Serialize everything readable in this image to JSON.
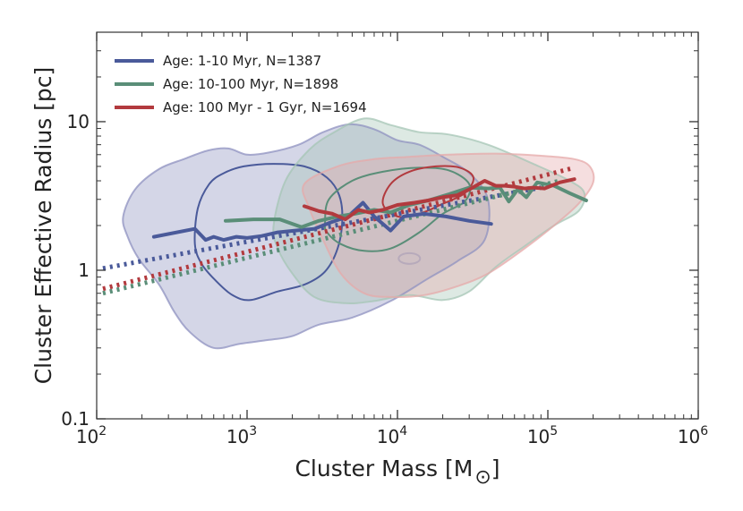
{
  "chart_data": {
    "type": "line",
    "xscale": "log",
    "yscale": "log",
    "xlabel": "Cluster Mass [M",
    "xlabel_symbol": "⊙",
    "xlabel_close": "]",
    "ylabel": "Cluster Effective Radius [pc]",
    "xlim": [
      100,
      1000000
    ],
    "ylim": [
      0.1,
      40
    ],
    "x_ticks": [
      {
        "value": 100,
        "base": "10",
        "exp": "2"
      },
      {
        "value": 1000,
        "base": "10",
        "exp": "3"
      },
      {
        "value": 10000,
        "base": "10",
        "exp": "4"
      },
      {
        "value": 100000,
        "base": "10",
        "exp": "5"
      },
      {
        "value": 1000000,
        "base": "10",
        "exp": "6"
      }
    ],
    "y_ticks": [
      {
        "value": 0.1,
        "label": "0.1"
      },
      {
        "value": 1,
        "label": "1"
      },
      {
        "value": 10,
        "label": "10"
      }
    ],
    "series": [
      {
        "name": "Age: 1-10 Myr, N=1387",
        "color": "#4a5a9a",
        "fill": "#8f92c0",
        "median": [
          [
            240,
            1.68
          ],
          [
            450,
            1.9
          ],
          [
            530,
            1.6
          ],
          [
            600,
            1.68
          ],
          [
            700,
            1.6
          ],
          [
            850,
            1.68
          ],
          [
            1000,
            1.65
          ],
          [
            1250,
            1.7
          ],
          [
            1600,
            1.8
          ],
          [
            2100,
            1.85
          ],
          [
            2800,
            1.9
          ],
          [
            3600,
            2.1
          ],
          [
            4700,
            2.3
          ],
          [
            5900,
            2.85
          ],
          [
            7000,
            2.3
          ],
          [
            9000,
            1.85
          ],
          [
            11000,
            2.3
          ],
          [
            15000,
            2.4
          ],
          [
            21000,
            2.3
          ],
          [
            30000,
            2.15
          ],
          [
            42000,
            2.05
          ]
        ],
        "fit": [
          [
            110,
            1.03
          ],
          [
            90000,
            3.6
          ]
        ],
        "outer_contour": [
          [
            150,
            2.3
          ],
          [
            180,
            3.5
          ],
          [
            260,
            4.8
          ],
          [
            380,
            5.6
          ],
          [
            550,
            6.4
          ],
          [
            750,
            6.6
          ],
          [
            1000,
            6.0
          ],
          [
            1400,
            6.2
          ],
          [
            2200,
            7.0
          ],
          [
            3200,
            8.5
          ],
          [
            4800,
            9.6
          ],
          [
            7000,
            8.9
          ],
          [
            10000,
            7.5
          ],
          [
            14000,
            7.0
          ],
          [
            20000,
            5.8
          ],
          [
            30000,
            4.5
          ],
          [
            40000,
            3.0
          ],
          [
            38000,
            1.6
          ],
          [
            25000,
            1.15
          ],
          [
            16000,
            0.88
          ],
          [
            9000,
            0.62
          ],
          [
            5000,
            0.48
          ],
          [
            3000,
            0.43
          ],
          [
            2000,
            0.36
          ],
          [
            1400,
            0.34
          ],
          [
            900,
            0.32
          ],
          [
            600,
            0.3
          ],
          [
            420,
            0.38
          ],
          [
            330,
            0.52
          ],
          [
            260,
            0.8
          ],
          [
            190,
            1.2
          ],
          [
            160,
            1.7
          ]
        ],
        "inner_contour": [
          [
            450,
            1.5
          ],
          [
            470,
            2.6
          ],
          [
            560,
            3.8
          ],
          [
            700,
            4.5
          ],
          [
            950,
            5.0
          ],
          [
            1500,
            5.2
          ],
          [
            2400,
            5.0
          ],
          [
            3400,
            4.2
          ],
          [
            4100,
            3.2
          ],
          [
            4300,
            2.2
          ],
          [
            4000,
            1.4
          ],
          [
            3300,
            0.98
          ],
          [
            2400,
            0.8
          ],
          [
            1600,
            0.72
          ],
          [
            1050,
            0.63
          ],
          [
            800,
            0.68
          ],
          [
            620,
            0.85
          ],
          [
            500,
            1.1
          ]
        ]
      },
      {
        "name": "Age: 10-100 Myr, N=1898",
        "color": "#5a8e78",
        "fill": "#a6c6b6",
        "median": [
          [
            720,
            2.15
          ],
          [
            1100,
            2.2
          ],
          [
            1650,
            2.2
          ],
          [
            2300,
            1.95
          ],
          [
            3000,
            2.15
          ],
          [
            4000,
            2.3
          ],
          [
            5200,
            2.4
          ],
          [
            7000,
            2.55
          ],
          [
            9000,
            2.45
          ],
          [
            12000,
            2.75
          ],
          [
            16000,
            2.95
          ],
          [
            22000,
            3.25
          ],
          [
            30000,
            3.6
          ],
          [
            40000,
            3.55
          ],
          [
            48000,
            3.6
          ],
          [
            55000,
            2.9
          ],
          [
            63000,
            3.5
          ],
          [
            72000,
            3.1
          ],
          [
            85000,
            3.9
          ],
          [
            110000,
            3.7
          ],
          [
            140000,
            3.3
          ],
          [
            180000,
            2.95
          ]
        ],
        "fit": [
          [
            110,
            0.7
          ],
          [
            120000,
            4.0
          ]
        ],
        "outer_contour": [
          [
            1500,
            2.0
          ],
          [
            1800,
            4.0
          ],
          [
            2600,
            6.5
          ],
          [
            3800,
            8.5
          ],
          [
            6000,
            10.5
          ],
          [
            9000,
            9.5
          ],
          [
            14000,
            8.5
          ],
          [
            22000,
            8.2
          ],
          [
            40000,
            7.0
          ],
          [
            80000,
            5.2
          ],
          [
            140000,
            4.0
          ],
          [
            175000,
            3.3
          ],
          [
            160000,
            2.5
          ],
          [
            110000,
            2.0
          ],
          [
            70000,
            1.45
          ],
          [
            45000,
            1.05
          ],
          [
            30000,
            0.72
          ],
          [
            20000,
            0.63
          ],
          [
            12000,
            0.68
          ],
          [
            7000,
            0.62
          ],
          [
            4500,
            0.6
          ],
          [
            2800,
            0.66
          ],
          [
            2000,
            0.95
          ],
          [
            1600,
            1.4
          ]
        ],
        "inner_contour": [
          [
            3300,
            2.1
          ],
          [
            3500,
            3.0
          ],
          [
            5000,
            4.0
          ],
          [
            8000,
            4.6
          ],
          [
            14000,
            4.9
          ],
          [
            22000,
            4.7
          ],
          [
            30000,
            3.8
          ],
          [
            28000,
            2.9
          ],
          [
            20000,
            2.4
          ],
          [
            14000,
            1.8
          ],
          [
            9000,
            1.4
          ],
          [
            6000,
            1.35
          ],
          [
            4200,
            1.5
          ],
          [
            3400,
            1.8
          ]
        ]
      },
      {
        "name": "Age: 100 Myr - 1 Gyr, N=1694",
        "color": "#b23a3e",
        "fill": "#e6a9aa",
        "median": [
          [
            2400,
            2.7
          ],
          [
            3000,
            2.5
          ],
          [
            3700,
            2.4
          ],
          [
            4500,
            2.2
          ],
          [
            5500,
            2.55
          ],
          [
            6500,
            2.45
          ],
          [
            8000,
            2.55
          ],
          [
            10000,
            2.75
          ],
          [
            13000,
            2.85
          ],
          [
            16000,
            2.95
          ],
          [
            20000,
            3.1
          ],
          [
            25000,
            3.2
          ],
          [
            30000,
            3.5
          ],
          [
            38000,
            4.0
          ],
          [
            45000,
            3.7
          ],
          [
            52000,
            3.7
          ],
          [
            60000,
            3.65
          ],
          [
            70000,
            3.55
          ],
          [
            80000,
            3.6
          ],
          [
            95000,
            3.55
          ],
          [
            120000,
            3.9
          ],
          [
            150000,
            4.1
          ]
        ],
        "fit": [
          [
            110,
            0.75
          ],
          [
            150000,
            4.9
          ]
        ],
        "outer_contour": [
          [
            2400,
            3.8
          ],
          [
            4000,
            5.0
          ],
          [
            7000,
            5.6
          ],
          [
            12000,
            5.8
          ],
          [
            22000,
            6.0
          ],
          [
            45000,
            6.1
          ],
          [
            90000,
            5.9
          ],
          [
            150000,
            5.6
          ],
          [
            190000,
            5.0
          ],
          [
            200000,
            3.9
          ],
          [
            160000,
            2.8
          ],
          [
            110000,
            2.0
          ],
          [
            70000,
            1.4
          ],
          [
            40000,
            0.95
          ],
          [
            25000,
            0.78
          ],
          [
            15000,
            0.68
          ],
          [
            9000,
            0.66
          ],
          [
            6000,
            0.7
          ],
          [
            4200,
            0.95
          ],
          [
            3200,
            1.6
          ],
          [
            2600,
            2.6
          ]
        ],
        "inner_contour": [
          [
            8000,
            2.8
          ],
          [
            9000,
            3.8
          ],
          [
            12000,
            4.6
          ],
          [
            18000,
            5.0
          ],
          [
            26000,
            4.9
          ],
          [
            32000,
            4.2
          ],
          [
            28000,
            3.3
          ],
          [
            20000,
            2.8
          ],
          [
            14000,
            2.4
          ],
          [
            10000,
            2.3
          ]
        ]
      }
    ],
    "extra_blob": {
      "center": [
        12000,
        1.2
      ],
      "color": "#b7aabb"
    },
    "legend_position": "top-left"
  }
}
